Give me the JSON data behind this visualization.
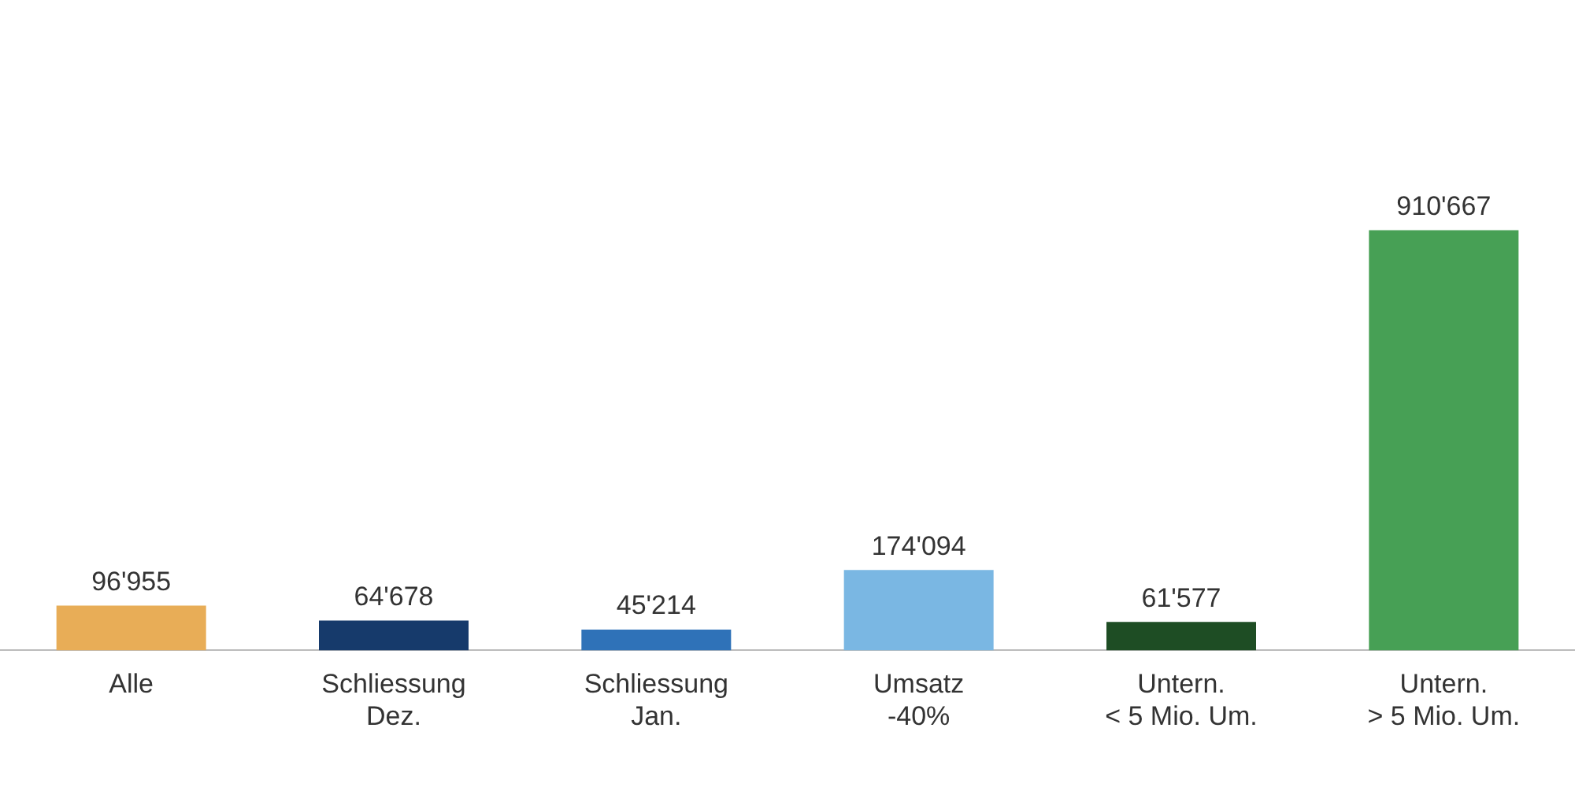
{
  "chart_data": {
    "type": "bar",
    "categories": [
      "Alle",
      "Schliessung\nDez.",
      "Schliessung\nJan.",
      "Umsatz\n-40%",
      "Untern.\n< 5 Mio. Um.",
      "Untern.\n> 5 Mio. Um."
    ],
    "values": [
      96955,
      64678,
      45214,
      174094,
      61577,
      910667
    ],
    "colors": [
      "#e8ad57",
      "#163a6b",
      "#2f72b8",
      "#7ab7e3",
      "#1e4d24",
      "#47a055"
    ],
    "value_labels": [
      "96'955",
      "64'678",
      "45'214",
      "174'094",
      "61'577",
      "910'667"
    ],
    "grid": false,
    "legend": false
  }
}
